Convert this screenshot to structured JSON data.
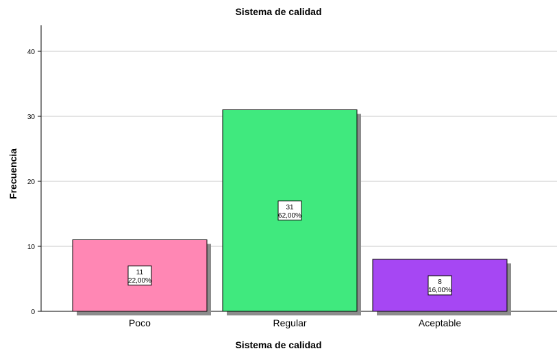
{
  "chart_data": {
    "type": "bar",
    "title": "Sistema de calidad",
    "xlabel": "Sistema de calidad",
    "ylabel": "Frecuencia",
    "categories": [
      "Poco",
      "Regular",
      "Aceptable"
    ],
    "values": [
      11,
      31,
      8
    ],
    "percent_labels": [
      "22,00%",
      "62,00%",
      "16,00%"
    ],
    "colors": [
      "#ff87b4",
      "#40e97e",
      "#a647f3"
    ],
    "yticks": [
      0,
      10,
      20,
      30,
      40
    ],
    "ylim": [
      0,
      44
    ],
    "grid": true
  }
}
